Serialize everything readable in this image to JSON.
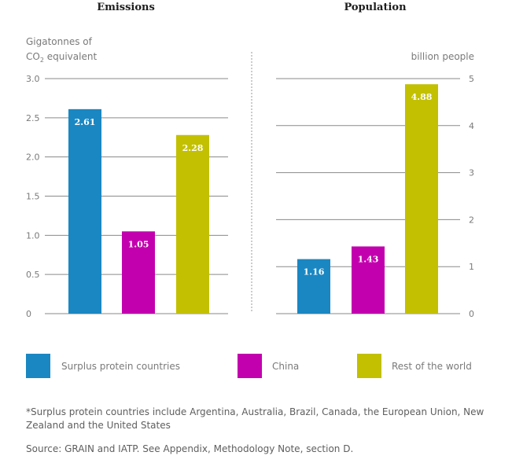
{
  "chart_data": [
    {
      "type": "bar",
      "title": "Emissions",
      "ylabel_line1": "Gigatonnes of",
      "ylabel_line2_prefix": "CO",
      "ylabel_line2_sub": "2",
      "ylabel_line2_suffix": " equivalent",
      "categories": [
        "Surplus protein countries",
        "China",
        "Rest of the world"
      ],
      "values": [
        2.61,
        1.05,
        2.28
      ],
      "value_labels": [
        "2.61",
        "1.05",
        "2.28"
      ],
      "ylim": [
        0,
        3.0
      ],
      "yticks": [
        0,
        0.5,
        1.0,
        1.5,
        2.0,
        2.5,
        3.0
      ],
      "ytick_labels": [
        "0",
        "0.5",
        "1.0",
        "1.5",
        "2.0",
        "2.5",
        "3.0"
      ],
      "axis_side": "left",
      "grid": true
    },
    {
      "type": "bar",
      "title": "Population",
      "ylabel": "billion people",
      "categories": [
        "Surplus protein countries",
        "China",
        "Rest of the world"
      ],
      "values": [
        1.16,
        1.43,
        4.88
      ],
      "value_labels": [
        "1.16",
        "1.43",
        "4.88"
      ],
      "ylim": [
        0,
        5
      ],
      "yticks": [
        0,
        1,
        2,
        3,
        4,
        5
      ],
      "ytick_labels": [
        "0",
        "1",
        "2",
        "3",
        "4",
        "5"
      ],
      "axis_side": "right",
      "grid": true
    }
  ],
  "legend": {
    "placement": "bottom",
    "items": [
      {
        "label": "Surplus protein countries",
        "color": "#1a87c2"
      },
      {
        "label": "China",
        "color": "#c300ae"
      },
      {
        "label": "Rest of the world",
        "color": "#c2c000"
      }
    ]
  },
  "footnote": "*Surplus protein countries include Argentina, Australia, Brazil, Canada, the European Union, New Zealand and the United States",
  "source": "Source: GRAIN and IATP. See Appendix, Methodology Note, section D."
}
